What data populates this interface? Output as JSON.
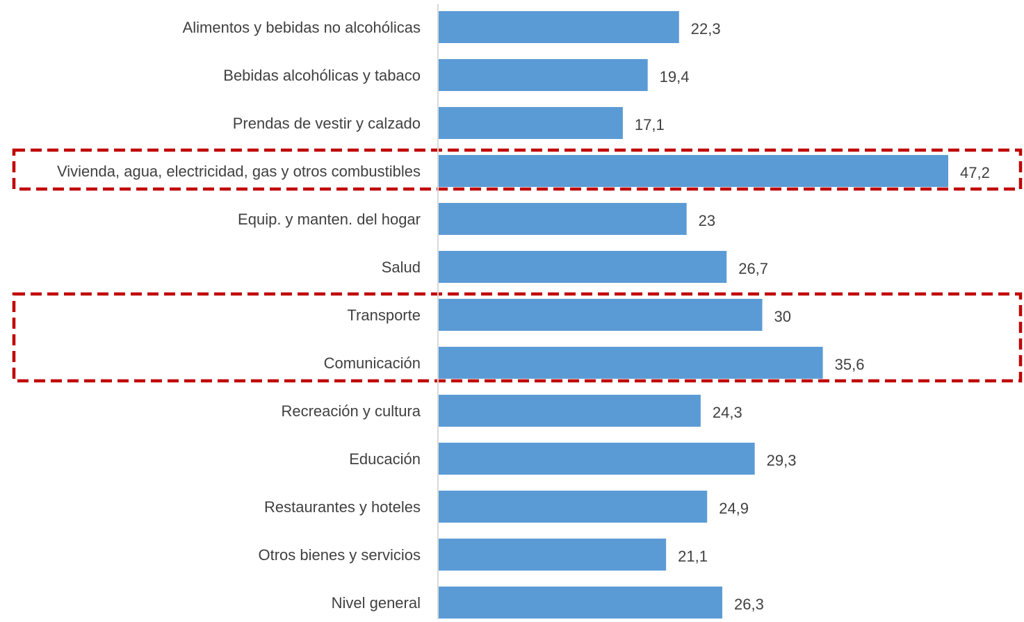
{
  "chart_data": {
    "type": "bar",
    "orientation": "horizontal",
    "title": "",
    "xlabel": "",
    "ylabel": "",
    "grid": false,
    "legend": "none",
    "xlim": [
      0,
      47.2
    ],
    "categories": [
      "Alimentos y bebidas no alcohólicas",
      "Bebidas alcohólicas y tabaco",
      "Prendas de vestir y calzado",
      "Vivienda, agua, electricidad, gas y otros combustibles",
      "Equip. y manten. del hogar",
      "Salud",
      "Transporte",
      "Comunicación",
      "Recreación y cultura",
      "Educación",
      "Restaurantes y hoteles",
      "Otros bienes y servicios",
      "Nivel general"
    ],
    "values": [
      22.3,
      19.4,
      17.1,
      47.2,
      23,
      26.7,
      30,
      35.6,
      24.3,
      29.3,
      24.9,
      21.1,
      26.3
    ],
    "data_labels": [
      "22,3",
      "19,4",
      "17,1",
      "47,2",
      "23",
      "26,7",
      "30",
      "35,6",
      "24,3",
      "29,3",
      "24,9",
      "21,1",
      "26,3"
    ],
    "highlight_boxes": [
      {
        "categories": [
          "Vivienda, agua, electricidad, gas y otros combustibles"
        ],
        "style": "dashed",
        "color": "#c00000"
      },
      {
        "categories": [
          "Transporte",
          "Comunicación"
        ],
        "style": "dashed",
        "color": "#c00000"
      }
    ],
    "colors": {
      "bar": "#5b9bd5",
      "axis": "#d9d9d9",
      "text": "#404040",
      "highlight": "#c00000"
    }
  }
}
